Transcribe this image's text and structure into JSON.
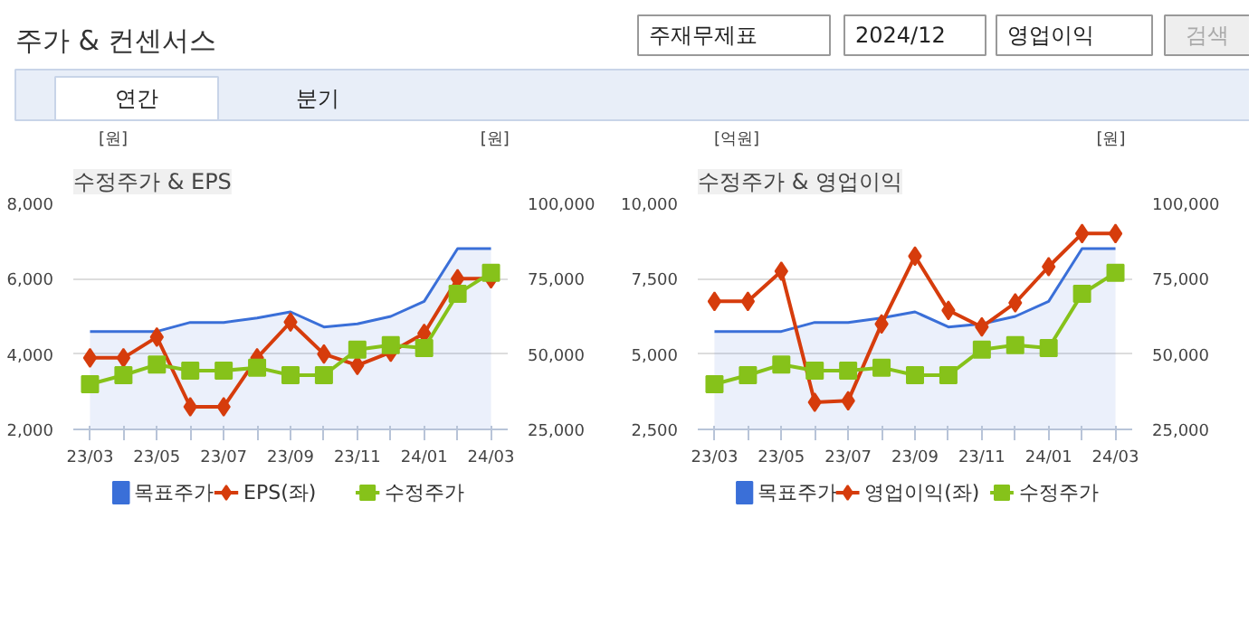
{
  "chart_data": [
    {
      "type": "other",
      "title": "주가 & 컨센서스",
      "annotations": [
        "주재무제표",
        "2024/12",
        "영업이익",
        "검색",
        "연간",
        "분기"
      ]
    },
    {
      "type": "line",
      "title": "수정주가 & EPS",
      "ylabel": "[원]",
      "y2label": "[원]",
      "categories": [
        "23/03",
        null,
        "23/05",
        null,
        "23/07",
        null,
        "23/09",
        null,
        "23/11",
        null,
        "24/01",
        null,
        "24/03"
      ],
      "ylim": [
        2000,
        8000
      ],
      "yticks": [
        {
          "value": 2000,
          "label": "2,000"
        },
        {
          "value": 4000,
          "label": "4,000"
        },
        {
          "value": 6000,
          "label": "6,000"
        },
        {
          "value": 8000,
          "label": "8,000"
        }
      ],
      "y2lim": [
        25000,
        100000
      ],
      "y2ticks": [
        {
          "value": 25000,
          "label": "25,000"
        },
        {
          "value": 50000,
          "label": "50,000"
        },
        {
          "value": 75000,
          "label": "75,000"
        },
        {
          "value": 100000,
          "label": "100,000"
        }
      ],
      "grid": "y",
      "legend": "bottom",
      "series": [
        {
          "name": "목표주가",
          "type": "area",
          "axis": "y2",
          "color": "#3a6fd8",
          "marker": "none",
          "values": [
            57500,
            57500,
            57500,
            60500,
            60500,
            62000,
            64000,
            59000,
            60000,
            62500,
            67500,
            85000,
            85000
          ]
        },
        {
          "name": "EPS(좌)",
          "type": "line",
          "color": "#d63c0c",
          "marker": "diamond",
          "values": [
            3900,
            3900,
            4450,
            2600,
            2600,
            3900,
            4850,
            4000,
            3700,
            4050,
            4550,
            6000,
            6000
          ]
        },
        {
          "name": "수정주가",
          "type": "line",
          "axis": "y2",
          "color": "#86c21a",
          "marker": "square",
          "values": [
            40000,
            43000,
            46500,
            44500,
            44500,
            45500,
            43000,
            43000,
            51500,
            53000,
            52000,
            70000,
            77000
          ]
        }
      ]
    },
    {
      "type": "line",
      "title": "수정주가 & 영업이익",
      "ylabel": "[억원]",
      "y2label": "[원]",
      "categories": [
        "23/03",
        null,
        "23/05",
        null,
        "23/07",
        null,
        "23/09",
        null,
        "23/11",
        null,
        "24/01",
        null,
        "24/03"
      ],
      "ylim": [
        2500,
        10000
      ],
      "yticks": [
        {
          "value": 2500,
          "label": "2,500"
        },
        {
          "value": 5000,
          "label": "5,000"
        },
        {
          "value": 7500,
          "label": "7,500"
        },
        {
          "value": 10000,
          "label": "10,000"
        }
      ],
      "y2lim": [
        25000,
        100000
      ],
      "y2ticks": [
        {
          "value": 25000,
          "label": "25,000"
        },
        {
          "value": 50000,
          "label": "50,000"
        },
        {
          "value": 75000,
          "label": "75,000"
        },
        {
          "value": 100000,
          "label": "100,000"
        }
      ],
      "grid": "y",
      "legend": "bottom",
      "series": [
        {
          "name": "목표주가",
          "type": "area",
          "axis": "y2",
          "color": "#3a6fd8",
          "marker": "none",
          "values": [
            57500,
            57500,
            57500,
            60500,
            60500,
            62000,
            64000,
            59000,
            60000,
            62500,
            67500,
            85000,
            85000
          ]
        },
        {
          "name": "영업이익(좌)",
          "type": "line",
          "color": "#d63c0c",
          "marker": "diamond",
          "values": [
            6750,
            6750,
            7750,
            3400,
            3450,
            6000,
            8250,
            6450,
            5900,
            6700,
            7900,
            9000,
            9000
          ]
        },
        {
          "name": "수정주가",
          "type": "line",
          "axis": "y2",
          "color": "#86c21a",
          "marker": "square",
          "values": [
            40000,
            43000,
            46500,
            44500,
            44500,
            45500,
            43000,
            43000,
            51500,
            53000,
            52000,
            70000,
            77000
          ]
        }
      ]
    }
  ]
}
